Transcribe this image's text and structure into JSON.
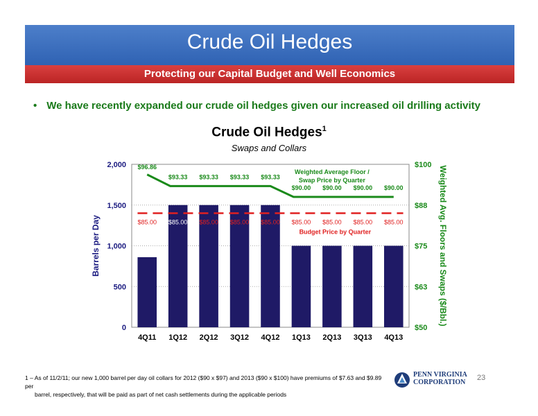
{
  "slide": {
    "title": "Crude Oil Hedges",
    "subtitle": "Protecting our Capital Budget and Well Economics",
    "bullet": "We have recently expanded our crude oil hedges given our increased oil drilling activity",
    "footnote_line1": "1 – As of 11/2/11; our new 1,000 barrel per day oil collars for 2012 ($90 x $97) and 2013 ($90 x $100) have premiums of $7.63 and $9.89 per",
    "footnote_line2": "barrel, respectively, that will be paid as part of net cash settlements during the applicable periods",
    "page_number": "23",
    "logo_line1": "PENN VIRGINIA",
    "logo_line2": "CORPORATION"
  },
  "chart_data": {
    "type": "bar",
    "title": "Crude Oil Hedges",
    "title_superscript": "1",
    "subtitle": "Swaps and Collars",
    "categories": [
      "4Q11",
      "1Q12",
      "2Q12",
      "3Q12",
      "4Q12",
      "1Q13",
      "2Q13",
      "3Q13",
      "4Q13"
    ],
    "series": [
      {
        "values": [
          860,
          1500,
          1500,
          1500,
          1500,
          1000,
          1000,
          1000,
          1000
        ],
        "color": "#1f1a66"
      },
      {
        "name": "Weighted Average Floor / Swap Price by Quarter",
        "type": "line",
        "axis": "right",
        "values": [
          96.86,
          93.33,
          93.33,
          93.33,
          93.33,
          90.0,
          90.0,
          90.0,
          90.0
        ],
        "labels": [
          "$96.86",
          "$93.33",
          "$93.33",
          "$93.33",
          "$93.33",
          "$90.00",
          "$90.00",
          "$90.00",
          "$90.00"
        ],
        "color": "#1a8a1a"
      },
      {
        "name": "Budget Price by Quarter",
        "type": "line",
        "style": "dashed",
        "axis": "right",
        "values": [
          85,
          85,
          85,
          85,
          85,
          85,
          85,
          85,
          85
        ],
        "labels": [
          "$85.00",
          "$85.00",
          "$85.00",
          "$85.00",
          "$85.00",
          "$85.00",
          "$85.00",
          "$85.00",
          "$85.00"
        ],
        "color": "#e02020"
      }
    ],
    "legend_floor_line1": "Weighted Average Floor /",
    "legend_floor_line2": "Swap Price by Quarter",
    "legend_budget": "Budget Price by Quarter",
    "ylabel": "Barrels per Day",
    "ylim": [
      0,
      2000
    ],
    "yticks": [
      "0",
      "500",
      "1,000",
      "1,500",
      "2,000"
    ],
    "y2label": "Weighted Avg. Floors and Swaps ($/Bbl.)",
    "y2lim": [
      50,
      100
    ],
    "y2ticks": [
      "$50",
      "$63",
      "$75",
      "$88",
      "$100"
    ],
    "grid": true
  }
}
